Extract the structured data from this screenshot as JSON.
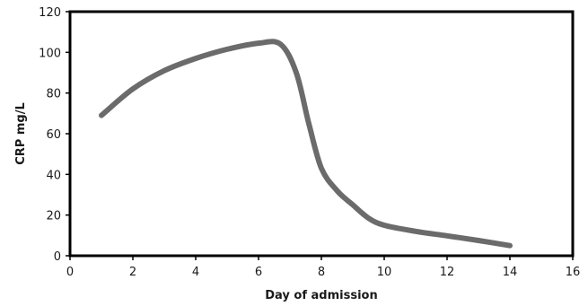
{
  "chart_data": {
    "type": "line",
    "title": "",
    "xlabel": "Day of admission",
    "ylabel": "CRP mg/L",
    "xlim": [
      0,
      16
    ],
    "ylim": [
      0,
      120
    ],
    "x_ticks": [
      0,
      2,
      4,
      6,
      8,
      10,
      12,
      14,
      16
    ],
    "y_ticks": [
      0,
      20,
      40,
      60,
      80,
      100,
      120
    ],
    "x_tick_labels": [
      "0",
      "2",
      "4",
      "6",
      "8",
      "10",
      "12",
      "14",
      "16"
    ],
    "y_tick_labels": [
      "0",
      "20",
      "40",
      "60",
      "80",
      "100",
      "120"
    ],
    "grid": false,
    "legend": "none",
    "series": [
      {
        "color": "#6b6b6b",
        "points": [
          [
            1,
            69
          ],
          [
            2,
            82
          ],
          [
            3,
            91
          ],
          [
            4,
            97
          ],
          [
            5,
            101.5
          ],
          [
            6,
            104.5
          ],
          [
            6.7,
            104
          ],
          [
            7.2,
            90
          ],
          [
            7.6,
            65
          ],
          [
            8,
            43
          ],
          [
            8.5,
            32
          ],
          [
            9,
            25
          ],
          [
            9.5,
            18.5
          ],
          [
            10,
            15
          ],
          [
            11,
            12
          ],
          [
            12,
            9.8
          ],
          [
            13,
            7.5
          ],
          [
            14,
            5
          ]
        ]
      }
    ]
  }
}
